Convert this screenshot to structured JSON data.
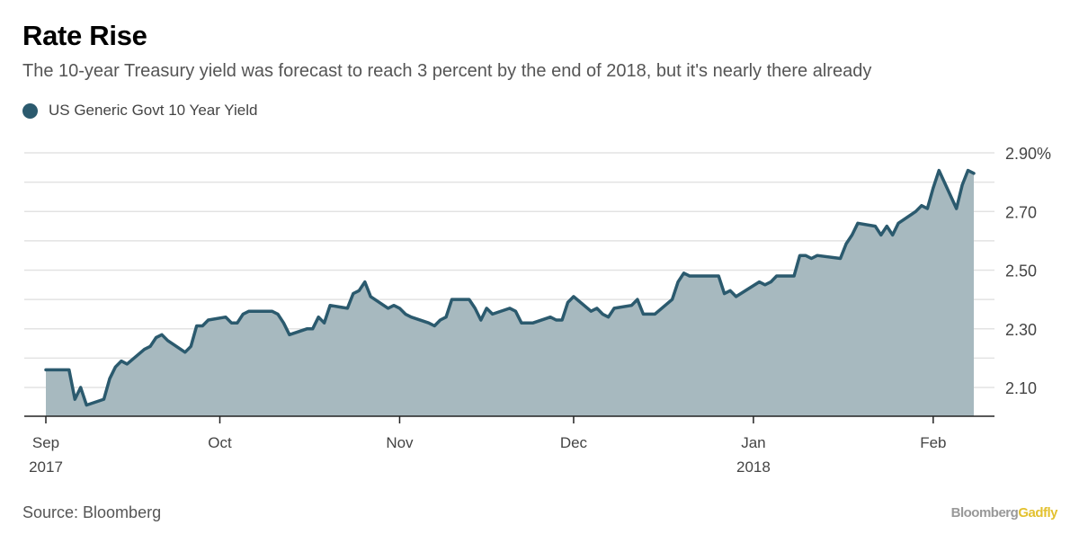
{
  "header": {
    "title": "Rate Rise",
    "subtitle": "The 10-year Treasury yield was forecast to reach 3 percent by the end of 2018, but it's nearly there already"
  },
  "legend": {
    "label": "US Generic Govt 10 Year Yield"
  },
  "footer": {
    "source": "Source: Bloomberg",
    "brand_part1": "Bloomberg",
    "brand_part2": "Gadfly"
  },
  "colors": {
    "line": "#2b5a6e",
    "area": "#a7b9bf",
    "grid": "#e3e3e3",
    "axis": "#222222",
    "brand_accent": "#e3c12f"
  },
  "chart_data": {
    "type": "area",
    "title": "Rate Rise",
    "subtitle": "The 10-year Treasury yield was forecast to reach 3 percent by the end of 2018, but it's nearly there already",
    "xlabel": "",
    "ylabel": "",
    "x_range": [
      "2017-09-01",
      "2018-02-09"
    ],
    "ylim": [
      2.0,
      2.95
    ],
    "y_ticks": [
      2.1,
      2.3,
      2.5,
      2.7,
      2.9
    ],
    "y_tick_labels": [
      "2.10",
      "2.30",
      "2.50",
      "2.70",
      "2.90%"
    ],
    "x_ticks": [
      {
        "date": "2017-09-01",
        "label": "Sep",
        "sublabel": "2017"
      },
      {
        "date": "2017-10-01",
        "label": "Oct",
        "sublabel": ""
      },
      {
        "date": "2017-11-01",
        "label": "Nov",
        "sublabel": ""
      },
      {
        "date": "2017-12-01",
        "label": "Dec",
        "sublabel": ""
      },
      {
        "date": "2018-01-01",
        "label": "Jan",
        "sublabel": "2018"
      },
      {
        "date": "2018-02-01",
        "label": "Feb",
        "sublabel": ""
      }
    ],
    "grid": true,
    "legend_position": "top-left",
    "series": [
      {
        "name": "US Generic Govt 10 Year Yield",
        "points": [
          [
            "2017-09-01",
            2.16
          ],
          [
            "2017-09-05",
            2.16
          ],
          [
            "2017-09-06",
            2.06
          ],
          [
            "2017-09-07",
            2.1
          ],
          [
            "2017-09-08",
            2.04
          ],
          [
            "2017-09-11",
            2.06
          ],
          [
            "2017-09-12",
            2.13
          ],
          [
            "2017-09-13",
            2.17
          ],
          [
            "2017-09-14",
            2.19
          ],
          [
            "2017-09-15",
            2.18
          ],
          [
            "2017-09-18",
            2.23
          ],
          [
            "2017-09-19",
            2.24
          ],
          [
            "2017-09-20",
            2.27
          ],
          [
            "2017-09-21",
            2.28
          ],
          [
            "2017-09-22",
            2.26
          ],
          [
            "2017-09-25",
            2.22
          ],
          [
            "2017-09-26",
            2.24
          ],
          [
            "2017-09-27",
            2.31
          ],
          [
            "2017-09-28",
            2.31
          ],
          [
            "2017-09-29",
            2.33
          ],
          [
            "2017-10-02",
            2.34
          ],
          [
            "2017-10-03",
            2.32
          ],
          [
            "2017-10-04",
            2.32
          ],
          [
            "2017-10-05",
            2.35
          ],
          [
            "2017-10-06",
            2.36
          ],
          [
            "2017-10-09",
            2.36
          ],
          [
            "2017-10-10",
            2.36
          ],
          [
            "2017-10-11",
            2.35
          ],
          [
            "2017-10-12",
            2.32
          ],
          [
            "2017-10-13",
            2.28
          ],
          [
            "2017-10-16",
            2.3
          ],
          [
            "2017-10-17",
            2.3
          ],
          [
            "2017-10-18",
            2.34
          ],
          [
            "2017-10-19",
            2.32
          ],
          [
            "2017-10-20",
            2.38
          ],
          [
            "2017-10-23",
            2.37
          ],
          [
            "2017-10-24",
            2.42
          ],
          [
            "2017-10-25",
            2.43
          ],
          [
            "2017-10-26",
            2.46
          ],
          [
            "2017-10-27",
            2.41
          ],
          [
            "2017-10-30",
            2.37
          ],
          [
            "2017-10-31",
            2.38
          ],
          [
            "2017-11-01",
            2.37
          ],
          [
            "2017-11-02",
            2.35
          ],
          [
            "2017-11-03",
            2.34
          ],
          [
            "2017-11-06",
            2.32
          ],
          [
            "2017-11-07",
            2.31
          ],
          [
            "2017-11-08",
            2.33
          ],
          [
            "2017-11-09",
            2.34
          ],
          [
            "2017-11-10",
            2.4
          ],
          [
            "2017-11-13",
            2.4
          ],
          [
            "2017-11-14",
            2.37
          ],
          [
            "2017-11-15",
            2.33
          ],
          [
            "2017-11-16",
            2.37
          ],
          [
            "2017-11-17",
            2.35
          ],
          [
            "2017-11-20",
            2.37
          ],
          [
            "2017-11-21",
            2.36
          ],
          [
            "2017-11-22",
            2.32
          ],
          [
            "2017-11-24",
            2.32
          ],
          [
            "2017-11-27",
            2.34
          ],
          [
            "2017-11-28",
            2.33
          ],
          [
            "2017-11-29",
            2.33
          ],
          [
            "2017-11-30",
            2.39
          ],
          [
            "2017-12-01",
            2.41
          ],
          [
            "2017-12-04",
            2.36
          ],
          [
            "2017-12-05",
            2.37
          ],
          [
            "2017-12-06",
            2.35
          ],
          [
            "2017-12-07",
            2.34
          ],
          [
            "2017-12-08",
            2.37
          ],
          [
            "2017-12-11",
            2.38
          ],
          [
            "2017-12-12",
            2.4
          ],
          [
            "2017-12-13",
            2.35
          ],
          [
            "2017-12-14",
            2.35
          ],
          [
            "2017-12-15",
            2.35
          ],
          [
            "2017-12-18",
            2.4
          ],
          [
            "2017-12-19",
            2.46
          ],
          [
            "2017-12-20",
            2.49
          ],
          [
            "2017-12-21",
            2.48
          ],
          [
            "2017-12-22",
            2.48
          ],
          [
            "2017-12-26",
            2.48
          ],
          [
            "2017-12-27",
            2.42
          ],
          [
            "2017-12-28",
            2.43
          ],
          [
            "2017-12-29",
            2.41
          ],
          [
            "2018-01-02",
            2.46
          ],
          [
            "2018-01-03",
            2.45
          ],
          [
            "2018-01-04",
            2.46
          ],
          [
            "2018-01-05",
            2.48
          ],
          [
            "2018-01-08",
            2.48
          ],
          [
            "2018-01-09",
            2.55
          ],
          [
            "2018-01-10",
            2.55
          ],
          [
            "2018-01-11",
            2.54
          ],
          [
            "2018-01-12",
            2.55
          ],
          [
            "2018-01-16",
            2.54
          ],
          [
            "2018-01-17",
            2.59
          ],
          [
            "2018-01-18",
            2.62
          ],
          [
            "2018-01-19",
            2.66
          ],
          [
            "2018-01-22",
            2.65
          ],
          [
            "2018-01-23",
            2.62
          ],
          [
            "2018-01-24",
            2.65
          ],
          [
            "2018-01-25",
            2.62
          ],
          [
            "2018-01-26",
            2.66
          ],
          [
            "2018-01-29",
            2.7
          ],
          [
            "2018-01-30",
            2.72
          ],
          [
            "2018-01-31",
            2.71
          ],
          [
            "2018-02-01",
            2.78
          ],
          [
            "2018-02-02",
            2.84
          ],
          [
            "2018-02-05",
            2.71
          ],
          [
            "2018-02-06",
            2.79
          ],
          [
            "2018-02-07",
            2.84
          ],
          [
            "2018-02-08",
            2.83
          ]
        ]
      }
    ]
  }
}
